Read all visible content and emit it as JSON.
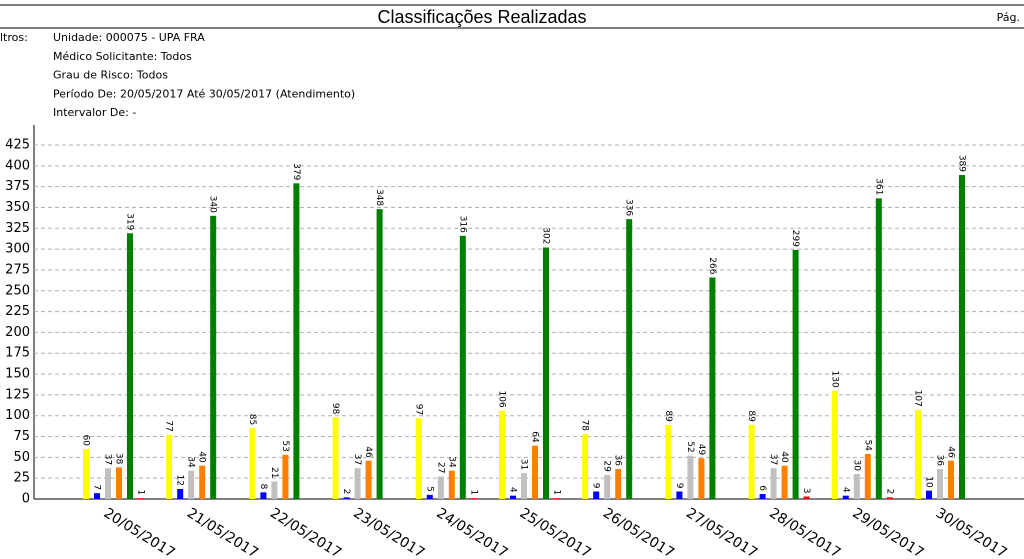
{
  "header": {
    "title": "Classificações Realizadas",
    "page": "Pág."
  },
  "filters": {
    "label": "ltros:",
    "lines": [
      "Unidade: 000075 - UPA FRA",
      "Médico Solicitante: Todos",
      "Grau de Risco: Todos",
      "Período De: 20/05/2017 Até 30/05/2017 (Atendimento)",
      "Intervalor De: -"
    ]
  },
  "chart_data": {
    "type": "bar",
    "categories": [
      "20/05/2017",
      "21/05/2017",
      "22/05/2017",
      "23/05/2017",
      "24/05/2017",
      "25/05/2017",
      "26/05/2017",
      "27/05/2017",
      "28/05/2017",
      "29/05/2017",
      "30/05/2017"
    ],
    "series": [
      {
        "color": "#ffff00",
        "values": [
          60,
          77,
          85,
          98,
          97,
          106,
          78,
          89,
          89,
          130,
          107
        ]
      },
      {
        "color": "#0000ff",
        "values": [
          7,
          12,
          8,
          2,
          5,
          4,
          9,
          9,
          6,
          4,
          10
        ]
      },
      {
        "color": "#c0c0c0",
        "values": [
          37,
          34,
          21,
          37,
          27,
          31,
          29,
          52,
          37,
          30,
          36
        ]
      },
      {
        "color": "#ff8000",
        "values": [
          38,
          40,
          53,
          46,
          34,
          64,
          36,
          49,
          40,
          54,
          46
        ]
      },
      {
        "color": "#008000",
        "values": [
          319,
          340,
          379,
          348,
          316,
          302,
          336,
          266,
          299,
          361,
          389
        ]
      },
      {
        "color": "#ff0000",
        "values": [
          1,
          null,
          null,
          null,
          1,
          1,
          null,
          null,
          3,
          2,
          null
        ]
      }
    ],
    "ylim": [
      0,
      450
    ],
    "yticks": [
      0,
      25,
      50,
      75,
      100,
      125,
      150,
      175,
      200,
      225,
      250,
      275,
      300,
      325,
      350,
      375,
      400,
      425
    ],
    "grid": true
  }
}
